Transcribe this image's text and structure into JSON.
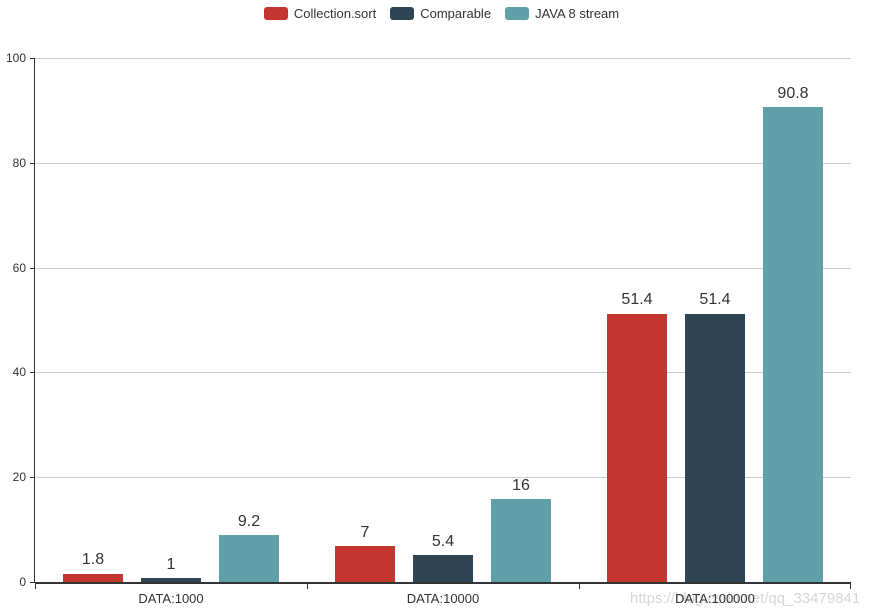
{
  "chart_data": {
    "type": "bar",
    "categories": [
      "DATA:1000",
      "DATA:10000",
      "DATA:100000"
    ],
    "series": [
      {
        "name": "Collection.sort",
        "color": "#c23531",
        "values": [
          1.8,
          7,
          51.4
        ]
      },
      {
        "name": "Comparable",
        "color": "#2f4554",
        "values": [
          1,
          5.4,
          51.4
        ]
      },
      {
        "name": "JAVA 8 stream",
        "color": "#61a0a8",
        "values": [
          9.2,
          16,
          90.8
        ]
      }
    ],
    "title": "",
    "xlabel": "",
    "ylabel": "",
    "ylim": [
      0,
      100
    ],
    "yticks": [
      0,
      20,
      40,
      60,
      80,
      100
    ],
    "grid": true,
    "legend_position": "top-center",
    "value_labels": true
  },
  "watermark": {
    "text": "https://blog.csdn.net/qq_33479841"
  },
  "colors": {
    "background": "#ffffff",
    "axis": "#333333",
    "grid": "#cccccc",
    "text": "#333333",
    "watermark": "#cccccc"
  }
}
